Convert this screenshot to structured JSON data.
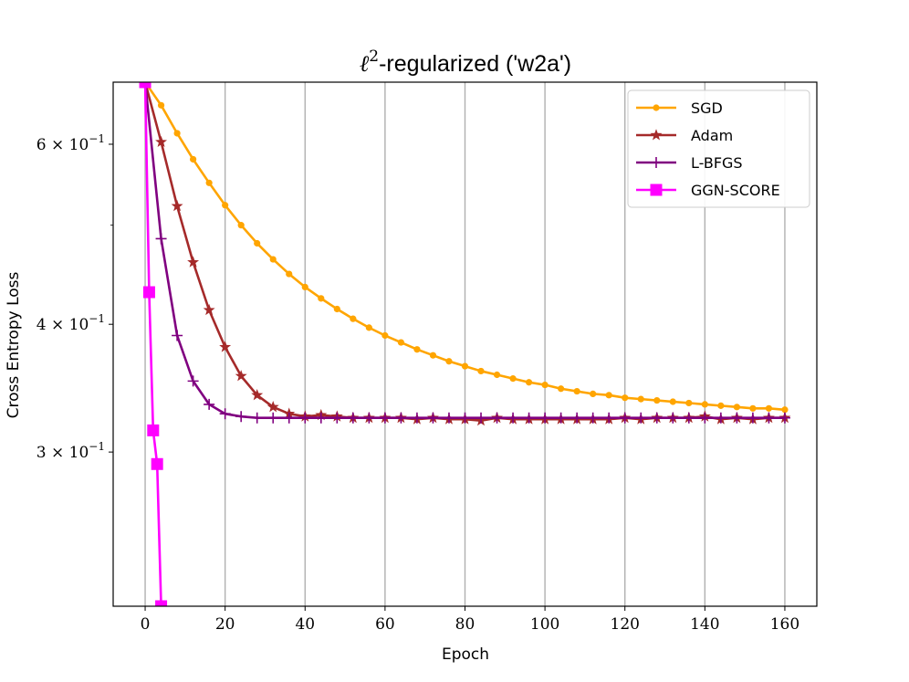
{
  "chart_data": {
    "type": "line",
    "title": "ℓ²-regularized ('w2a')",
    "title_main": "ℓ",
    "title_sup": "2",
    "title_rest": "-regularized ('w2a')",
    "xlabel": "Epoch",
    "ylabel": "Cross Entropy Loss",
    "y_scale": "log",
    "xlim": [
      -8,
      168
    ],
    "ylim": [
      0.212,
      0.69
    ],
    "x_ticks": [
      0,
      20,
      40,
      60,
      80,
      100,
      120,
      140,
      160
    ],
    "y_major_ticks": [
      {
        "value": 0.3,
        "mantissa": "3",
        "exp": "−1"
      },
      {
        "value": 0.4,
        "mantissa": "4",
        "exp": "−1"
      },
      {
        "value": 0.6,
        "mantissa": "6",
        "exp": "−1"
      }
    ],
    "y_minor_ticks": [
      0.5
    ],
    "grid": "x",
    "legend_position": "top-right",
    "series": [
      {
        "name": "SGD",
        "color": "#ffa500",
        "marker": "dot",
        "x": [
          0,
          4,
          8,
          12,
          16,
          20,
          24,
          28,
          32,
          36,
          40,
          44,
          48,
          52,
          56,
          60,
          64,
          68,
          72,
          76,
          80,
          84,
          88,
          92,
          96,
          100,
          104,
          108,
          112,
          116,
          120,
          124,
          128,
          132,
          136,
          140,
          144,
          148,
          152,
          156,
          160
        ],
        "y": [
          0.69,
          0.655,
          0.615,
          0.58,
          0.55,
          0.523,
          0.5,
          0.48,
          0.463,
          0.448,
          0.435,
          0.424,
          0.414,
          0.405,
          0.397,
          0.39,
          0.384,
          0.378,
          0.373,
          0.368,
          0.364,
          0.36,
          0.357,
          0.354,
          0.351,
          0.349,
          0.346,
          0.344,
          0.342,
          0.341,
          0.339,
          0.338,
          0.337,
          0.336,
          0.335,
          0.334,
          0.333,
          0.332,
          0.331,
          0.331,
          0.33
        ]
      },
      {
        "name": "Adam",
        "color": "#a52a2a",
        "marker": "star",
        "x": [
          0,
          4,
          8,
          12,
          16,
          20,
          24,
          28,
          32,
          36,
          40,
          44,
          48,
          52,
          56,
          60,
          64,
          68,
          72,
          76,
          80,
          84,
          88,
          92,
          96,
          100,
          104,
          108,
          112,
          116,
          120,
          124,
          128,
          132,
          136,
          140,
          144,
          148,
          152,
          156,
          160
        ],
        "y": [
          0.69,
          0.603,
          0.522,
          0.46,
          0.413,
          0.38,
          0.356,
          0.341,
          0.332,
          0.327,
          0.325,
          0.326,
          0.325,
          0.324,
          0.324,
          0.324,
          0.324,
          0.323,
          0.324,
          0.323,
          0.323,
          0.322,
          0.324,
          0.323,
          0.323,
          0.323,
          0.323,
          0.323,
          0.323,
          0.323,
          0.324,
          0.323,
          0.324,
          0.324,
          0.324,
          0.325,
          0.323,
          0.324,
          0.323,
          0.324,
          0.324
        ]
      },
      {
        "name": "L-BFGS",
        "color": "#800080",
        "marker": "plus",
        "x": [
          0,
          4,
          8,
          12,
          16,
          20,
          24,
          28,
          32,
          36,
          40,
          44,
          48,
          52,
          56,
          60,
          64,
          68,
          72,
          76,
          80,
          84,
          88,
          92,
          96,
          100,
          104,
          108,
          112,
          116,
          120,
          124,
          128,
          132,
          136,
          140,
          144,
          148,
          152,
          156,
          160
        ],
        "y": [
          0.69,
          0.485,
          0.39,
          0.352,
          0.334,
          0.327,
          0.325,
          0.324,
          0.324,
          0.324,
          0.324,
          0.324,
          0.324,
          0.324,
          0.324,
          0.324,
          0.324,
          0.324,
          0.324,
          0.324,
          0.324,
          0.324,
          0.324,
          0.324,
          0.324,
          0.324,
          0.324,
          0.324,
          0.324,
          0.324,
          0.324,
          0.324,
          0.324,
          0.324,
          0.324,
          0.324,
          0.324,
          0.324,
          0.324,
          0.324,
          0.324
        ]
      },
      {
        "name": "GGN-SCORE",
        "color": "#ff00ff",
        "marker": "square",
        "x": [
          0,
          1,
          2,
          3,
          4
        ],
        "y": [
          0.69,
          0.43,
          0.315,
          0.292,
          0.212
        ]
      }
    ]
  }
}
